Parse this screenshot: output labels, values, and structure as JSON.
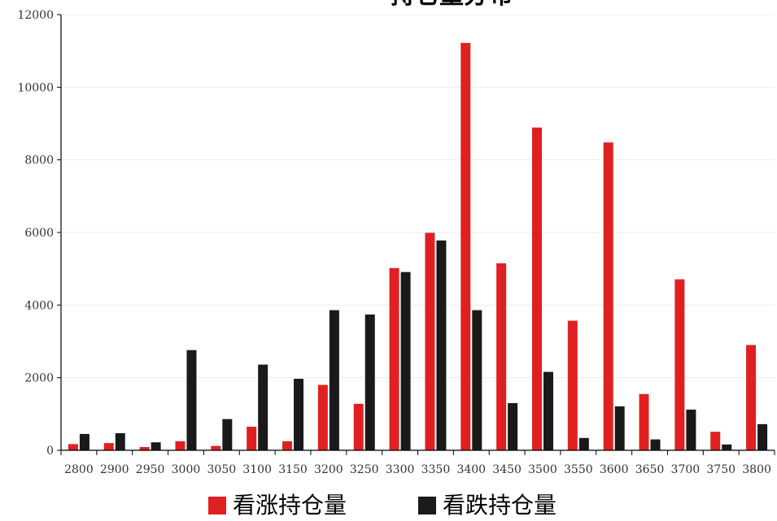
{
  "chart_data": {
    "type": "bar",
    "title": "持仓量分布",
    "xlabel": "",
    "ylabel": "",
    "ylim": [
      0,
      12000
    ],
    "yticks": [
      0,
      2000,
      4000,
      6000,
      8000,
      10000,
      12000
    ],
    "categories": [
      "2800",
      "2900",
      "2950",
      "3000",
      "3050",
      "3100",
      "3150",
      "3200",
      "3250",
      "3300",
      "3350",
      "3400",
      "3450",
      "3500",
      "3550",
      "3600",
      "3650",
      "3700",
      "3750",
      "3800"
    ],
    "series": [
      {
        "name": "看涨持仓量",
        "color": "#e02020",
        "values": [
          170,
          200,
          90,
          250,
          120,
          650,
          250,
          1800,
          1280,
          5020,
          5990,
          11220,
          5150,
          8890,
          3570,
          8480,
          1550,
          4710,
          510,
          2900
        ]
      },
      {
        "name": "看跌持仓量",
        "color": "#1a1a1a",
        "values": [
          450,
          470,
          220,
          2760,
          860,
          2360,
          1970,
          3860,
          3740,
          4910,
          5780,
          3860,
          1300,
          2160,
          340,
          1210,
          300,
          1120,
          160,
          720
        ]
      }
    ],
    "grid": true,
    "legend_position": "bottom-center"
  }
}
